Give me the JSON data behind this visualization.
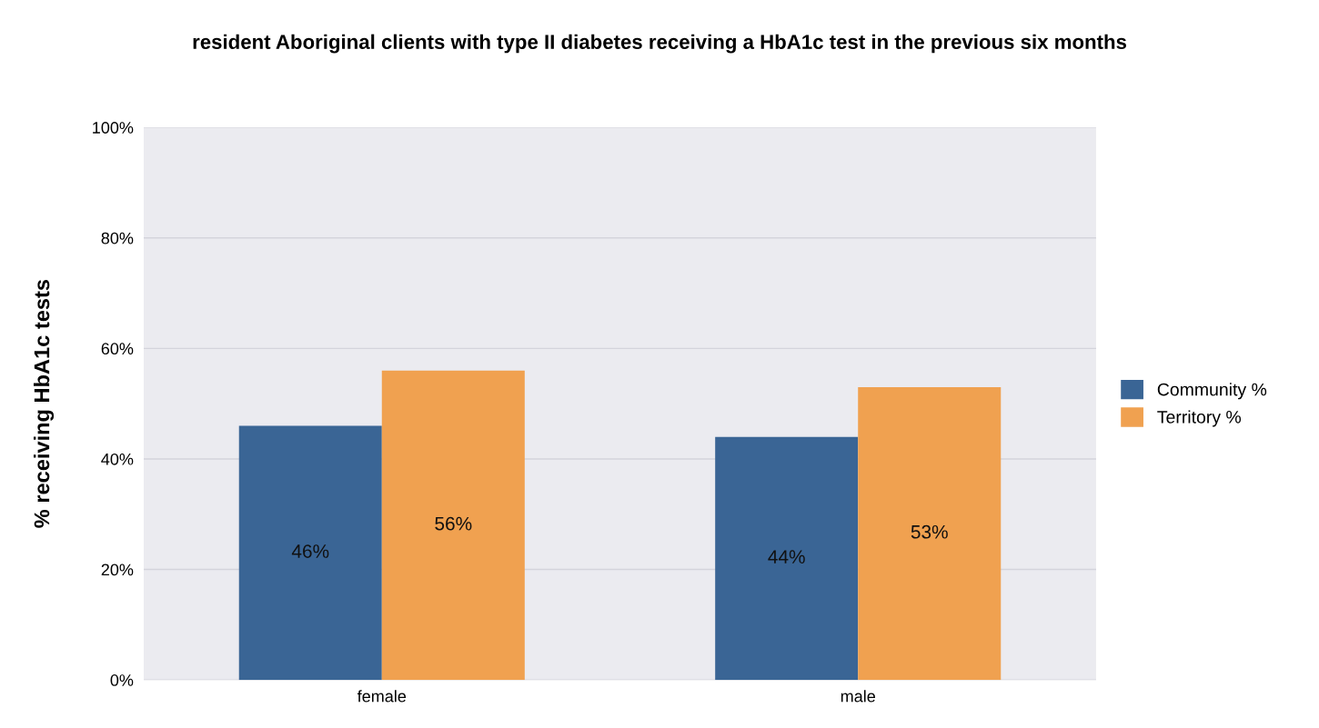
{
  "chart_data": {
    "type": "bar",
    "title": "resident Aboriginal clients with type II diabetes receiving a HbA1c test in the previous six months",
    "ylabel": "% receiving HbA1c tests",
    "categories": [
      "female",
      "male"
    ],
    "series": [
      {
        "name": "Community %",
        "color": "#3a6595",
        "values": [
          46,
          44
        ],
        "value_labels": [
          "46%",
          "44%"
        ]
      },
      {
        "name": "Territory %",
        "color": "#f0a150",
        "values": [
          56,
          53
        ],
        "value_labels": [
          "56%",
          "53%"
        ]
      }
    ],
    "ylim": [
      0,
      100
    ],
    "yticks": [
      {
        "value": 0,
        "label": "0%"
      },
      {
        "value": 20,
        "label": "20%"
      },
      {
        "value": 40,
        "label": "40%"
      },
      {
        "value": 60,
        "label": "60%"
      },
      {
        "value": 80,
        "label": "80%"
      },
      {
        "value": 100,
        "label": "100%"
      }
    ],
    "grid": "y",
    "legend": "right"
  }
}
